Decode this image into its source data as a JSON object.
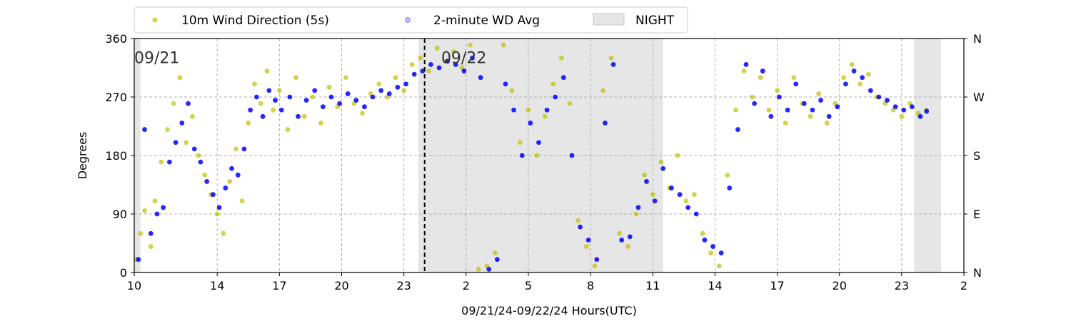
{
  "chart_data": {
    "type": "scatter",
    "xlabel": "09/21/24-09/22/24  Hours(UTC)",
    "ylabel": "Degrees",
    "ylim": [
      0,
      360
    ],
    "yticks": [
      0,
      90,
      180,
      270,
      360
    ],
    "right_ticks": [
      {
        "value": 0,
        "label": "N"
      },
      {
        "value": 90,
        "label": "E"
      },
      {
        "value": 180,
        "label": "S"
      },
      {
        "value": 270,
        "label": "W"
      },
      {
        "value": 360,
        "label": "N"
      }
    ],
    "x_start_hour": 10,
    "x_end_hour": 50,
    "x_ticks": [
      {
        "hour": 10,
        "label": "10"
      },
      {
        "hour": 14,
        "label": "14"
      },
      {
        "hour": 17,
        "label": "17"
      },
      {
        "hour": 20,
        "label": "20"
      },
      {
        "hour": 23,
        "label": "23"
      },
      {
        "hour": 26,
        "label": "2"
      },
      {
        "hour": 29,
        "label": "5"
      },
      {
        "hour": 32,
        "label": "8"
      },
      {
        "hour": 35,
        "label": "11"
      },
      {
        "hour": 38,
        "label": "14"
      },
      {
        "hour": 41,
        "label": "17"
      },
      {
        "hour": 44,
        "label": "20"
      },
      {
        "hour": 47,
        "label": "23"
      },
      {
        "hour": 50,
        "label": "2"
      }
    ],
    "grid": true,
    "legend_position": "top",
    "day_boundary": {
      "hour": 24,
      "style": "dashed"
    },
    "date_annotations": [
      {
        "hour": 10,
        "text": "09/21"
      },
      {
        "hour": 24.8,
        "text": "09/22"
      }
    ],
    "night_bands": [
      {
        "start": 10,
        "end": 10.3
      },
      {
        "start": 23.7,
        "end": 35.5
      },
      {
        "start": 47.6,
        "end": 48.9
      }
    ],
    "series": [
      {
        "name": "10m Wind Direction (5s)",
        "color": "#bfbf00",
        "marker": "circle",
        "points": [
          [
            10.1,
            20
          ],
          [
            10.3,
            60
          ],
          [
            10.5,
            95
          ],
          [
            10.8,
            40
          ],
          [
            11.0,
            110
          ],
          [
            11.3,
            170
          ],
          [
            11.6,
            220
          ],
          [
            11.9,
            260
          ],
          [
            12.2,
            300
          ],
          [
            12.5,
            200
          ],
          [
            12.8,
            240
          ],
          [
            13.1,
            180
          ],
          [
            13.4,
            150
          ],
          [
            13.7,
            120
          ],
          [
            14.0,
            90
          ],
          [
            14.3,
            60
          ],
          [
            14.6,
            140
          ],
          [
            14.9,
            190
          ],
          [
            15.2,
            110
          ],
          [
            15.5,
            230
          ],
          [
            15.8,
            290
          ],
          [
            16.1,
            260
          ],
          [
            16.4,
            310
          ],
          [
            16.7,
            250
          ],
          [
            17.0,
            280
          ],
          [
            17.4,
            220
          ],
          [
            17.8,
            300
          ],
          [
            18.2,
            240
          ],
          [
            18.6,
            270
          ],
          [
            19.0,
            230
          ],
          [
            19.4,
            285
          ],
          [
            19.8,
            255
          ],
          [
            20.2,
            300
          ],
          [
            20.6,
            260
          ],
          [
            21.0,
            245
          ],
          [
            21.4,
            275
          ],
          [
            21.8,
            290
          ],
          [
            22.2,
            270
          ],
          [
            22.6,
            300
          ],
          [
            23.0,
            280
          ],
          [
            23.4,
            320
          ],
          [
            23.8,
            330
          ],
          [
            24.2,
            310
          ],
          [
            24.6,
            345
          ],
          [
            25.0,
            325
          ],
          [
            25.4,
            340
          ],
          [
            25.8,
            315
          ],
          [
            26.2,
            350
          ],
          [
            26.6,
            5
          ],
          [
            27.0,
            10
          ],
          [
            27.4,
            30
          ],
          [
            27.8,
            350
          ],
          [
            28.2,
            280
          ],
          [
            28.6,
            200
          ],
          [
            29.0,
            250
          ],
          [
            29.4,
            180
          ],
          [
            29.8,
            240
          ],
          [
            30.2,
            290
          ],
          [
            30.6,
            330
          ],
          [
            31.0,
            260
          ],
          [
            31.4,
            80
          ],
          [
            31.8,
            40
          ],
          [
            32.2,
            10
          ],
          [
            32.6,
            280
          ],
          [
            33.0,
            330
          ],
          [
            33.4,
            60
          ],
          [
            33.8,
            40
          ],
          [
            34.2,
            90
          ],
          [
            34.6,
            150
          ],
          [
            35.0,
            120
          ],
          [
            35.4,
            170
          ],
          [
            35.8,
            130
          ],
          [
            36.2,
            180
          ],
          [
            36.6,
            110
          ],
          [
            37.0,
            120
          ],
          [
            37.4,
            60
          ],
          [
            37.8,
            30
          ],
          [
            38.2,
            10
          ],
          [
            38.6,
            150
          ],
          [
            39.0,
            250
          ],
          [
            39.4,
            310
          ],
          [
            39.8,
            270
          ],
          [
            40.2,
            300
          ],
          [
            40.6,
            250
          ],
          [
            41.0,
            280
          ],
          [
            41.4,
            230
          ],
          [
            41.8,
            300
          ],
          [
            42.2,
            260
          ],
          [
            42.6,
            240
          ],
          [
            43.0,
            275
          ],
          [
            43.4,
            230
          ],
          [
            43.8,
            260
          ],
          [
            44.2,
            300
          ],
          [
            44.6,
            320
          ],
          [
            45.0,
            290
          ],
          [
            45.4,
            305
          ],
          [
            45.8,
            270
          ],
          [
            46.2,
            260
          ],
          [
            46.6,
            250
          ],
          [
            47.0,
            240
          ],
          [
            47.4,
            260
          ],
          [
            47.8,
            245
          ],
          [
            48.2,
            250
          ]
        ]
      },
      {
        "name": "2-minute WD Avg",
        "color": "#0000ff",
        "marker": "circle",
        "points": [
          [
            10.2,
            20
          ],
          [
            10.5,
            220
          ],
          [
            10.8,
            60
          ],
          [
            11.1,
            90
          ],
          [
            11.4,
            100
          ],
          [
            11.7,
            170
          ],
          [
            12.0,
            200
          ],
          [
            12.3,
            230
          ],
          [
            12.6,
            260
          ],
          [
            12.9,
            190
          ],
          [
            13.2,
            170
          ],
          [
            13.5,
            140
          ],
          [
            13.8,
            120
          ],
          [
            14.1,
            100
          ],
          [
            14.4,
            130
          ],
          [
            14.7,
            160
          ],
          [
            15.0,
            150
          ],
          [
            15.3,
            190
          ],
          [
            15.6,
            250
          ],
          [
            15.9,
            270
          ],
          [
            16.2,
            240
          ],
          [
            16.5,
            280
          ],
          [
            16.8,
            265
          ],
          [
            17.1,
            250
          ],
          [
            17.5,
            270
          ],
          [
            17.9,
            240
          ],
          [
            18.3,
            265
          ],
          [
            18.7,
            280
          ],
          [
            19.1,
            255
          ],
          [
            19.5,
            270
          ],
          [
            19.9,
            260
          ],
          [
            20.3,
            275
          ],
          [
            20.7,
            265
          ],
          [
            21.1,
            255
          ],
          [
            21.5,
            270
          ],
          [
            21.9,
            280
          ],
          [
            22.3,
            275
          ],
          [
            22.7,
            285
          ],
          [
            23.1,
            290
          ],
          [
            23.5,
            305
          ],
          [
            23.9,
            310
          ],
          [
            24.3,
            320
          ],
          [
            24.7,
            315
          ],
          [
            25.1,
            325
          ],
          [
            25.5,
            320
          ],
          [
            25.9,
            310
          ],
          [
            26.3,
            330
          ],
          [
            26.7,
            300
          ],
          [
            27.1,
            5
          ],
          [
            27.5,
            20
          ],
          [
            27.9,
            290
          ],
          [
            28.3,
            250
          ],
          [
            28.7,
            180
          ],
          [
            29.1,
            230
          ],
          [
            29.5,
            200
          ],
          [
            29.9,
            250
          ],
          [
            30.3,
            270
          ],
          [
            30.7,
            300
          ],
          [
            31.1,
            180
          ],
          [
            31.5,
            70
          ],
          [
            31.9,
            50
          ],
          [
            32.3,
            20
          ],
          [
            32.7,
            230
          ],
          [
            33.1,
            320
          ],
          [
            33.5,
            50
          ],
          [
            33.9,
            55
          ],
          [
            34.3,
            100
          ],
          [
            34.7,
            140
          ],
          [
            35.1,
            110
          ],
          [
            35.5,
            160
          ],
          [
            35.9,
            130
          ],
          [
            36.3,
            120
          ],
          [
            36.7,
            100
          ],
          [
            37.1,
            90
          ],
          [
            37.5,
            50
          ],
          [
            37.9,
            40
          ],
          [
            38.3,
            30
          ],
          [
            38.7,
            130
          ],
          [
            39.1,
            220
          ],
          [
            39.5,
            320
          ],
          [
            39.9,
            260
          ],
          [
            40.3,
            310
          ],
          [
            40.7,
            240
          ],
          [
            41.1,
            270
          ],
          [
            41.5,
            250
          ],
          [
            41.9,
            290
          ],
          [
            42.3,
            260
          ],
          [
            42.7,
            250
          ],
          [
            43.1,
            265
          ],
          [
            43.5,
            240
          ],
          [
            43.9,
            255
          ],
          [
            44.3,
            290
          ],
          [
            44.7,
            310
          ],
          [
            45.1,
            300
          ],
          [
            45.5,
            280
          ],
          [
            45.9,
            270
          ],
          [
            46.3,
            265
          ],
          [
            46.7,
            255
          ],
          [
            47.1,
            250
          ],
          [
            47.5,
            255
          ],
          [
            47.9,
            240
          ],
          [
            48.2,
            248
          ]
        ]
      },
      {
        "name": "NIGHT",
        "color": "#e6e6e6",
        "marker": "band"
      }
    ]
  }
}
